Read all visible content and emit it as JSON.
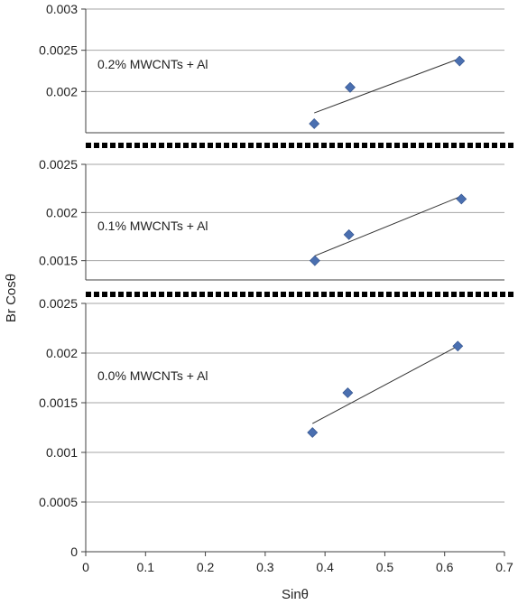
{
  "chart_data": {
    "type": "scatter",
    "xlabel": "Sinθ",
    "ylabel": "Br Cosθ",
    "xlim": [
      0,
      0.7
    ],
    "x_ticks": [
      "0",
      "0.1",
      "0.2",
      "0.3",
      "0.4",
      "0.5",
      "0.6",
      "0.7"
    ],
    "panels": [
      {
        "label": "0.2% MWCNTs + Al",
        "ylim": [
          0.0015,
          0.003
        ],
        "y_ticks": [
          {
            "value": 0.003,
            "label": "0.003"
          },
          {
            "value": 0.0025,
            "label": "0.0025"
          },
          {
            "value": 0.002,
            "label": "0.002"
          }
        ],
        "points": [
          {
            "x": 0.382,
            "y": 0.00161
          },
          {
            "x": 0.442,
            "y": 0.00205
          },
          {
            "x": 0.625,
            "y": 0.00237
          }
        ],
        "trendline": {
          "x1": 0.382,
          "y1": 0.00174,
          "x2": 0.625,
          "y2": 0.0024
        }
      },
      {
        "label": "0.1% MWCNTs + Al",
        "ylim": [
          0.0013,
          0.0025
        ],
        "y_ticks": [
          {
            "value": 0.0025,
            "label": "0.0025"
          },
          {
            "value": 0.002,
            "label": "0.002"
          },
          {
            "value": 0.0015,
            "label": "0.0015"
          }
        ],
        "points": [
          {
            "x": 0.383,
            "y": 0.0015
          },
          {
            "x": 0.44,
            "y": 0.00177
          },
          {
            "x": 0.628,
            "y": 0.00214
          }
        ],
        "trendline": {
          "x1": 0.383,
          "y1": 0.00155,
          "x2": 0.628,
          "y2": 0.00217
        }
      },
      {
        "label": "0.0% MWCNTs + Al",
        "ylim": [
          0,
          0.0025
        ],
        "y_ticks": [
          {
            "value": 0.0025,
            "label": "0.0025"
          },
          {
            "value": 0.002,
            "label": "0.002"
          },
          {
            "value": 0.0015,
            "label": "0.0015"
          },
          {
            "value": 0.001,
            "label": "0.001"
          },
          {
            "value": 0.0005,
            "label": "0.0005"
          },
          {
            "value": 0,
            "label": "0"
          }
        ],
        "points": [
          {
            "x": 0.379,
            "y": 0.0012
          },
          {
            "x": 0.438,
            "y": 0.0016
          },
          {
            "x": 0.622,
            "y": 0.00207
          }
        ],
        "trendline": {
          "x1": 0.379,
          "y1": 0.00129,
          "x2": 0.622,
          "y2": 0.00207
        }
      }
    ],
    "colors": {
      "marker": "#4a6fb0",
      "marker_stroke": "#2f4f8a",
      "trendline": "#333333",
      "gridline": "#a6a6a6",
      "axis": "#404040",
      "separator": "#000000"
    },
    "grid": true,
    "legend": "none"
  }
}
